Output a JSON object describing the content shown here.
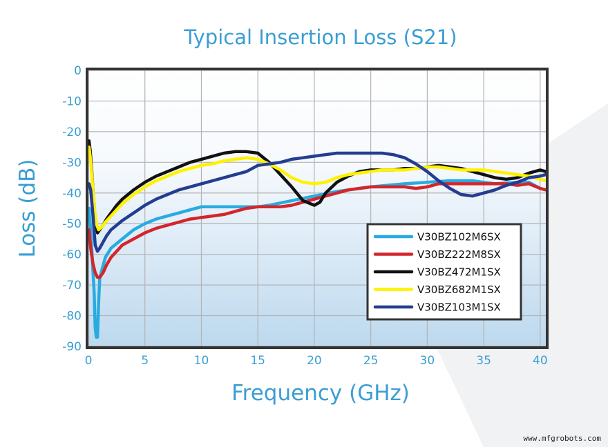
{
  "watermark": "www.mfgrobots.com",
  "chart_data": {
    "type": "line",
    "title": "Typical Insertion Loss (S21)",
    "xlabel": "Frequency (GHz)",
    "ylabel": "Loss (dB)",
    "xlim": [
      0,
      40.5
    ],
    "ylim": [
      -90,
      0
    ],
    "xticks": [
      "0",
      "5",
      "10",
      "15",
      "20",
      "25",
      "30",
      "35",
      "40"
    ],
    "yticks": [
      "0",
      "-10",
      "-20",
      "-30",
      "-40",
      "-50",
      "-60",
      "-70",
      "-80",
      "-90"
    ],
    "grid": true,
    "legend_position": "lower-right",
    "series": [
      {
        "name": "V30BZ102M6SX",
        "color": "#29abe2",
        "x": [
          0.05,
          0.2,
          0.35,
          0.5,
          0.6,
          0.7,
          0.8,
          0.9,
          1.0,
          1.2,
          1.5,
          2,
          3,
          4,
          5,
          6,
          7,
          8,
          9,
          10,
          12,
          14,
          15,
          16,
          18,
          20,
          22,
          25,
          28,
          30,
          32,
          34,
          35,
          36,
          38,
          39,
          40,
          40.5
        ],
        "y": [
          -45,
          -52,
          -62,
          -72,
          -84,
          -87,
          -87,
          -76,
          -68,
          -65,
          -61,
          -58,
          -55,
          -52,
          -50,
          -48.5,
          -47.5,
          -46.5,
          -45.5,
          -44.5,
          -44.5,
          -44.5,
          -44.5,
          -44,
          -42.5,
          -41,
          -39.5,
          -38,
          -37,
          -36.5,
          -36,
          -36,
          -36.5,
          -37,
          -36.5,
          -36.5,
          -38.5,
          -39
        ]
      },
      {
        "name": "V30BZ222M8SX",
        "color": "#d3262b",
        "x": [
          0.05,
          0.2,
          0.4,
          0.6,
          0.8,
          1.0,
          1.3,
          1.6,
          2,
          2.5,
          3,
          4,
          5,
          6,
          7,
          8,
          9,
          10,
          11,
          12,
          13,
          14,
          15,
          16,
          17,
          18,
          19,
          20,
          21,
          22,
          23,
          24,
          25,
          26,
          27,
          28,
          29,
          30,
          31,
          32,
          33,
          34,
          35,
          36,
          37,
          38,
          39,
          40,
          40.5
        ],
        "y": [
          -52,
          -58,
          -63,
          -66,
          -67.5,
          -67.5,
          -66,
          -63.5,
          -61,
          -59,
          -57,
          -55,
          -53,
          -51.5,
          -50.5,
          -49.5,
          -48.5,
          -48,
          -47.5,
          -47,
          -46,
          -45,
          -44.5,
          -44.5,
          -44.5,
          -44,
          -43,
          -42,
          -41,
          -40,
          -39,
          -38.5,
          -38,
          -38,
          -38,
          -38,
          -38.5,
          -38,
          -37,
          -37,
          -37,
          -37,
          -37,
          -37,
          -37,
          -37.5,
          -37,
          -38.5,
          -39
        ]
      },
      {
        "name": "V30BZ472M1SX",
        "color": "#111111",
        "x": [
          0.05,
          0.15,
          0.3,
          0.45,
          0.6,
          0.8,
          1.0,
          1.3,
          1.6,
          2,
          2.5,
          3,
          4,
          5,
          6,
          7,
          8,
          9,
          10,
          11,
          12,
          13,
          14,
          15,
          16,
          17,
          18,
          19,
          20,
          20.5,
          21,
          22,
          23,
          24,
          25,
          26,
          27,
          28,
          29,
          30,
          31,
          32,
          33,
          34,
          35,
          36,
          37,
          38,
          39,
          40,
          40.5
        ],
        "y": [
          -23,
          -26,
          -33,
          -42,
          -48,
          -53,
          -52,
          -50.5,
          -48.5,
          -46.5,
          -44,
          -42,
          -39,
          -36.5,
          -34.5,
          -33,
          -31.5,
          -30,
          -29,
          -28,
          -27,
          -26.5,
          -26.5,
          -27,
          -30,
          -34,
          -38,
          -42.5,
          -44,
          -43,
          -40,
          -36.5,
          -34.5,
          -33,
          -32.5,
          -32.5,
          -32.5,
          -32,
          -32,
          -31.5,
          -31,
          -31.5,
          -32,
          -33,
          -34,
          -35,
          -35.5,
          -35,
          -33.5,
          -32.5,
          -33
        ]
      },
      {
        "name": "V30BZ682M1SX",
        "color": "#fff200",
        "x": [
          0.05,
          0.15,
          0.3,
          0.5,
          0.7,
          0.9,
          1.2,
          1.5,
          2,
          2.5,
          3,
          4,
          5,
          6,
          7,
          8,
          9,
          10,
          11,
          12,
          13,
          14,
          15,
          16,
          17,
          18,
          19,
          20,
          21,
          22,
          23,
          24,
          25,
          26,
          27,
          28,
          29,
          30,
          31,
          32,
          33,
          34,
          35,
          36,
          37,
          38,
          39,
          40,
          40.5
        ],
        "y": [
          -25,
          -28,
          -34,
          -44,
          -50,
          -52,
          -51,
          -49.5,
          -47.5,
          -45.5,
          -43.5,
          -40.5,
          -38,
          -36,
          -34.5,
          -33,
          -32,
          -31,
          -30.5,
          -29.5,
          -29,
          -28.5,
          -29,
          -30.5,
          -32.5,
          -35,
          -36.5,
          -37,
          -36.5,
          -35,
          -34,
          -33.5,
          -33,
          -32.5,
          -32.5,
          -32.5,
          -32,
          -31.5,
          -31.5,
          -32,
          -32.5,
          -32.5,
          -32.5,
          -33,
          -33.5,
          -34,
          -34.5,
          -35.5,
          -36
        ]
      },
      {
        "name": "V30BZ103M1SX",
        "color": "#233d91",
        "x": [
          0.05,
          0.2,
          0.4,
          0.6,
          0.8,
          1.0,
          1.3,
          1.6,
          2,
          2.5,
          3,
          4,
          5,
          6,
          7,
          8,
          9,
          10,
          11,
          12,
          13,
          14,
          15,
          16,
          17,
          18,
          19,
          20,
          21,
          22,
          23,
          24,
          25,
          26,
          27,
          28,
          29,
          30,
          31,
          32,
          33,
          34,
          35,
          36,
          37,
          38,
          39,
          40,
          40.5
        ],
        "y": [
          -37,
          -39,
          -47,
          -57,
          -59,
          -58,
          -56,
          -54,
          -52,
          -50.5,
          -49,
          -46.5,
          -44,
          -42,
          -40.5,
          -39,
          -38,
          -37,
          -36,
          -35,
          -34,
          -33,
          -31,
          -30.5,
          -30,
          -29,
          -28.5,
          -28,
          -27.5,
          -27,
          -27,
          -27,
          -27,
          -27,
          -27.5,
          -28.5,
          -30.5,
          -33,
          -36,
          -38.5,
          -40.5,
          -41,
          -40,
          -39,
          -37.5,
          -36.5,
          -35,
          -34.5,
          -34
        ]
      }
    ]
  }
}
